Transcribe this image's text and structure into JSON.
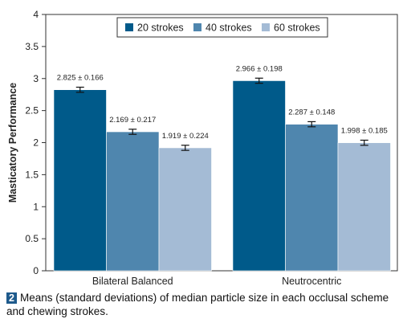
{
  "chart_data": {
    "type": "bar",
    "ylabel": "Masticatory Performance",
    "xlabel": "",
    "ylim": [
      0,
      4
    ],
    "yticks": [
      "0",
      "0.5",
      "1",
      "1.5",
      "2",
      "2.5",
      "3",
      "3.5",
      "4"
    ],
    "grid": false,
    "legend_placement": "top-center",
    "categories": [
      "Bilateral Balanced",
      "Neutrocentric"
    ],
    "series": [
      {
        "name": "20 strokes",
        "color": "#005a8a",
        "values": [
          2.825,
          2.966
        ],
        "sd": [
          0.166,
          0.198
        ],
        "labels": [
          "2.825 ± 0.166",
          "2.966 ± 0.198"
        ]
      },
      {
        "name": "40 strokes",
        "color": "#4f86ae",
        "values": [
          2.169,
          2.287
        ],
        "sd": [
          0.217,
          0.148
        ],
        "labels": [
          "2.169 ± 0.217",
          "2.287 ± 0.148"
        ]
      },
      {
        "name": "60 strokes",
        "color": "#a4bbd5",
        "values": [
          1.919,
          1.998
        ],
        "sd": [
          0.224,
          0.185
        ],
        "labels": [
          "1.919 ± 0.224",
          "1.998 ± 0.185"
        ]
      }
    ]
  },
  "caption": {
    "number": "2",
    "text": "Means (standard deviations) of median particle size in each occlusal scheme and chewing strokes."
  }
}
